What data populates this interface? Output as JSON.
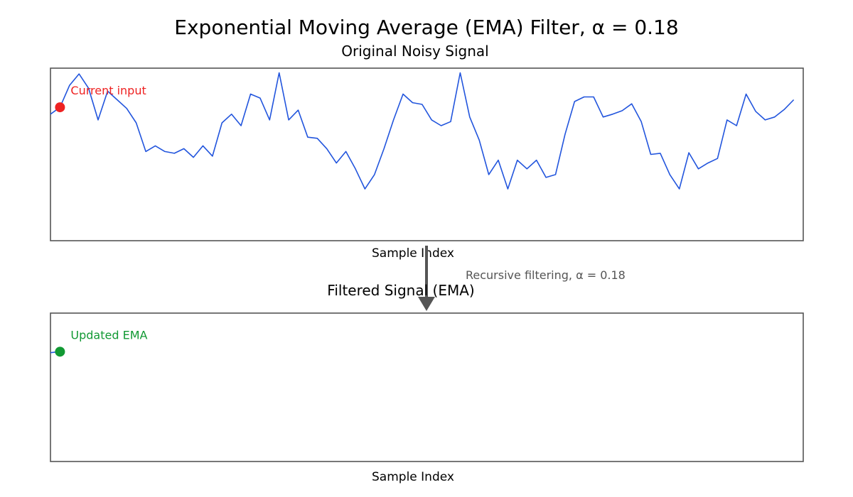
{
  "chart_data": {
    "type": "line",
    "title": "Exponential Moving Average (EMA) Filter, α = 0.18",
    "alpha": 0.18,
    "colors": {
      "signal": "#2255dd",
      "input_marker": "#ee2222",
      "ema_marker": "#119933",
      "arrow": "#555555",
      "frame": "#555555"
    },
    "panels": [
      {
        "subtitle": "Original Noisy Signal",
        "xlabel": "Sample Index",
        "xlim": [
          0,
          79
        ],
        "ylim": [
          -1.5,
          1.5
        ],
        "series": [
          {
            "values": [
              0.7,
              0.82,
              1.2,
              1.4,
              1.15,
              0.6,
              1.1,
              0.95,
              0.8,
              0.55,
              0.05,
              0.15,
              0.05,
              0.02,
              0.1,
              -0.05,
              0.15,
              -0.03,
              0.55,
              0.7,
              0.5,
              1.05,
              0.98,
              0.6,
              1.42,
              0.6,
              0.77,
              0.3,
              0.28,
              0.1,
              -0.15,
              0.05,
              -0.25,
              -0.6,
              -0.35,
              0.1,
              0.6,
              1.05,
              0.9,
              0.87,
              0.6,
              0.5,
              0.57,
              1.42,
              0.65,
              0.25,
              -0.35,
              -0.1,
              -0.6,
              -0.1,
              -0.25,
              -0.1,
              -0.4,
              -0.35,
              0.35,
              0.92,
              1.0,
              1.0,
              0.65,
              0.7,
              0.76,
              0.88,
              0.57,
              0.0,
              0.02,
              -0.35,
              -0.6,
              0.03,
              -0.25,
              -0.15,
              -0.07,
              0.6,
              0.5,
              1.05,
              0.75,
              0.6,
              0.65,
              0.78,
              0.95
            ]
          }
        ],
        "markers": [
          {
            "label": "Current input",
            "x": 1,
            "y": 0.82
          }
        ]
      },
      {
        "subtitle": "Filtered Signal (EMA)",
        "xlabel": "Sample Index",
        "xlim": [
          0,
          79
        ],
        "ylim": [
          -1.5,
          1.5
        ],
        "series": [
          {
            "values": [
              0.7,
              0.72
            ]
          }
        ],
        "markers": [
          {
            "label": "Updated EMA",
            "x": 1,
            "y": 0.72
          }
        ]
      }
    ],
    "annotations": [
      {
        "text": "Recursive filtering, α = 0.18"
      }
    ]
  }
}
